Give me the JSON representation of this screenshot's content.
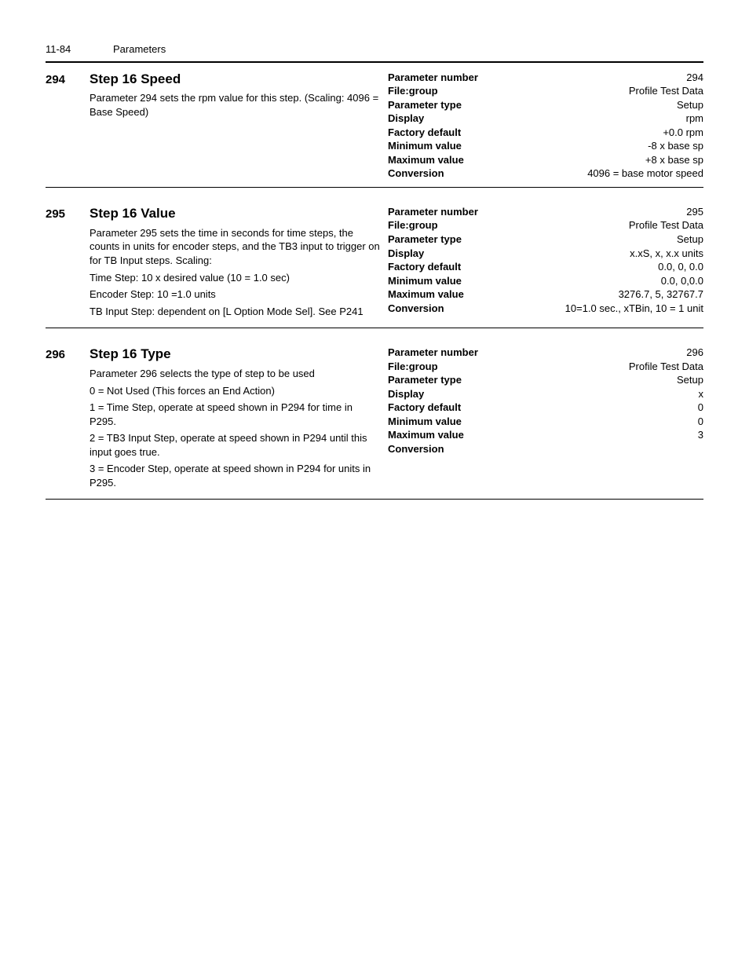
{
  "header": {
    "page_num": "11-84",
    "section": "Parameters"
  },
  "params": [
    {
      "id": "294",
      "title": "Step 16 Speed",
      "desc": [
        "Parameter 294 sets the rpm value for this step. (Scaling: 4096 = Base Speed)"
      ],
      "props": [
        {
          "label": "Parameter number",
          "value": "294"
        },
        {
          "label": "File:group",
          "value": "Profile Test Data"
        },
        {
          "label": "Parameter type",
          "value": "Setup"
        },
        {
          "label": "Display",
          "value": "rpm"
        },
        {
          "label": "Factory default",
          "value": "+0.0 rpm"
        },
        {
          "label": "Minimum value",
          "value": "-8 x base sp"
        },
        {
          "label": "Maximum value",
          "value": "+8 x base sp"
        },
        {
          "label": "Conversion",
          "value": "4096 = base motor speed"
        }
      ]
    },
    {
      "id": "295",
      "title": "Step 16 Value",
      "desc": [
        "Parameter 295 sets the time in seconds for time steps, the counts in units for encoder steps, and the TB3 input to trigger on for TB Input steps. Scaling:",
        "Time Step: 10 x desired value (10 = 1.0 sec)",
        "Encoder Step: 10 =1.0 units",
        "TB Input Step: dependent on [L Option Mode Sel]. See P241"
      ],
      "props": [
        {
          "label": "Parameter number",
          "value": "295"
        },
        {
          "label": "File:group",
          "value": "Profile Test Data"
        },
        {
          "label": "Parameter type",
          "value": "Setup"
        },
        {
          "label": "Display",
          "value": "x.xS, x, x.x units"
        },
        {
          "label": "Factory default",
          "value": "0.0, 0, 0.0"
        },
        {
          "label": "Minimum value",
          "value": "0.0, 0,0.0"
        },
        {
          "label": "Maximum value",
          "value": "3276.7, 5, 32767.7"
        },
        {
          "label": "Conversion",
          "value": "10=1.0 sec., xTBin, 10 = 1 unit"
        }
      ]
    },
    {
      "id": "296",
      "title": "Step 16 Type",
      "desc": [
        "Parameter 296 selects the type of step to be used",
        "0 = Not Used (This forces an End Action)",
        "1 = Time Step, operate at speed shown in P294 for time in P295.",
        "2 = TB3 Input Step, operate at speed shown in P294 until this input goes true.",
        "3 = Encoder Step, operate at speed shown in P294 for units in P295."
      ],
      "props": [
        {
          "label": "Parameter number",
          "value": "296"
        },
        {
          "label": "File:group",
          "value": "Profile Test Data"
        },
        {
          "label": "Parameter type",
          "value": "Setup"
        },
        {
          "label": "Display",
          "value": "x"
        },
        {
          "label": "Factory default",
          "value": "0"
        },
        {
          "label": "Minimum value",
          "value": "0"
        },
        {
          "label": "Maximum value",
          "value": "3"
        },
        {
          "label": "Conversion",
          "value": ""
        }
      ]
    }
  ]
}
